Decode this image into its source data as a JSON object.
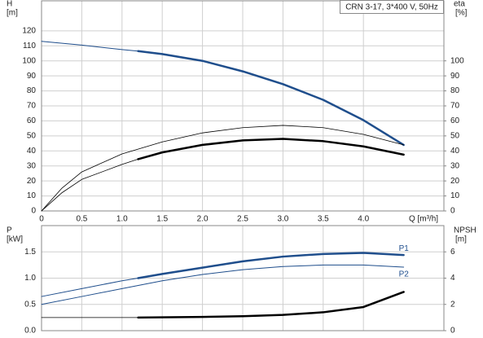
{
  "chart_data": [
    {
      "type": "line",
      "title": "CRN 3-17, 3*400 V, 50Hz",
      "ylabel": "H",
      "yunit": "[m]",
      "y2label": "eta",
      "y2unit": "[%]",
      "xlabel": "Q [m³/h]",
      "xlim": [
        0,
        5
      ],
      "xticks": [
        0,
        0.5,
        {
          "value": 1,
          "label": "1.0"
        },
        1.5,
        {
          "value": 2,
          "label": "2.0"
        },
        2.5,
        {
          "value": 3,
          "label": "3.0"
        },
        3.5,
        {
          "value": 4,
          "label": "4.0"
        }
      ],
      "show_xtick_labels": true,
      "ylim": [
        0,
        140
      ],
      "yticks": [
        0,
        10,
        20,
        30,
        40,
        50,
        60,
        70,
        80,
        90,
        100,
        110,
        120
      ],
      "y2lim": [
        0,
        140
      ],
      "y2ticks": [
        0,
        10,
        20,
        30,
        40,
        50,
        60,
        70,
        80,
        90,
        100
      ],
      "grid": true,
      "series": [
        {
          "color": "#1f4e8c",
          "width": 1,
          "x": [
            0,
            0.5,
            1.0,
            1.2
          ],
          "values": [
            113,
            110.5,
            107.5,
            106.5
          ]
        },
        {
          "color": "#1f4e8c",
          "width": 2.5,
          "x": [
            1.2,
            1.5,
            2.0,
            2.5,
            3.0,
            3.5,
            4.0,
            4.5
          ],
          "values": [
            106.5,
            104.5,
            100,
            93,
            84.5,
            74,
            60.5,
            44
          ]
        },
        {
          "color": "#000000",
          "width": 0.8,
          "axis": "y2",
          "x": [
            0,
            0.25,
            0.5,
            1.0,
            1.5,
            2.0,
            2.5,
            3.0,
            3.5,
            4.0,
            4.5
          ],
          "values": [
            0,
            15,
            26,
            38,
            46,
            52,
            55.5,
            57,
            55.5,
            51,
            44
          ]
        },
        {
          "color": "#000000",
          "width": 0.8,
          "axis": "y2",
          "x": [
            0,
            0.25,
            0.5,
            1.0,
            1.2
          ],
          "values": [
            0,
            12,
            21,
            31,
            34.5
          ]
        },
        {
          "color": "#000000",
          "width": 2.5,
          "axis": "y2",
          "x": [
            1.2,
            1.5,
            2.0,
            2.5,
            3.0,
            3.5,
            4.0,
            4.5
          ],
          "values": [
            34.5,
            39,
            44,
            47,
            48,
            46.5,
            43,
            37.5
          ]
        }
      ]
    },
    {
      "type": "line",
      "ylabel": "P",
      "yunit": "[kW]",
      "y2label": "NPSH",
      "y2unit": "[m]",
      "xlim": [
        0,
        5
      ],
      "xticks": [
        0,
        0.5,
        1,
        1.5,
        2,
        2.5,
        3,
        3.5,
        4
      ],
      "show_xtick_labels": false,
      "ylim": [
        0,
        2
      ],
      "yticks": [
        {
          "value": 0,
          "label": "0.0"
        },
        0.5,
        {
          "value": 1,
          "label": "1.0"
        },
        1.5
      ],
      "y2lim": [
        0,
        8
      ],
      "y2ticks": [
        0,
        2,
        4,
        6
      ],
      "grid": true,
      "series": [
        {
          "color": "#1f4e8c",
          "width": 1,
          "x": [
            0,
            0.5,
            1.0,
            1.2
          ],
          "values": [
            0.65,
            0.8,
            0.95,
            1.0
          ]
        },
        {
          "color": "#1f4e8c",
          "width": 2.5,
          "label": "P1",
          "label_pos": "above",
          "x": [
            1.2,
            1.5,
            2.0,
            2.5,
            3.0,
            3.5,
            4.0,
            4.5
          ],
          "values": [
            1.0,
            1.08,
            1.2,
            1.32,
            1.41,
            1.46,
            1.48,
            1.44
          ]
        },
        {
          "color": "#1f4e8c",
          "width": 1,
          "label": "P2",
          "label_pos": "below",
          "x": [
            0,
            0.5,
            1.0,
            1.5,
            2.0,
            2.5,
            3.0,
            3.5,
            4.0,
            4.5
          ],
          "values": [
            0.5,
            0.65,
            0.8,
            0.95,
            1.07,
            1.16,
            1.22,
            1.25,
            1.25,
            1.21
          ]
        },
        {
          "color": "#000000",
          "width": 0.8,
          "axis": "y2",
          "x": [
            0,
            1.0,
            1.2
          ],
          "values": [
            1.0,
            1.0,
            1.0
          ]
        },
        {
          "color": "#000000",
          "width": 2.5,
          "axis": "y2",
          "x": [
            1.2,
            2.0,
            2.5,
            3.0,
            3.5,
            4.0,
            4.5
          ],
          "values": [
            1.0,
            1.05,
            1.1,
            1.2,
            1.4,
            1.8,
            2.95
          ]
        }
      ]
    }
  ]
}
